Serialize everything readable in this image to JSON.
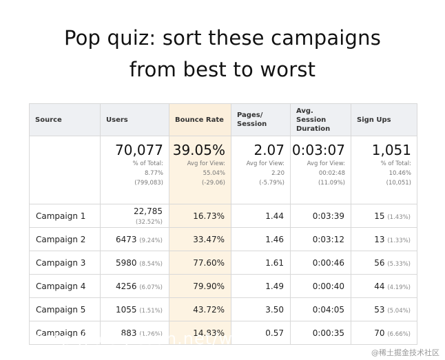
{
  "title": {
    "line1": "Pop quiz: sort these campaigns",
    "line2": "from best to worst"
  },
  "table": {
    "headers": [
      "Source",
      "Users",
      "Bounce Rate",
      "Pages/ Session",
      "Avg. Session Duration",
      "Sign Ups"
    ],
    "summary": {
      "users": {
        "value": "70,077",
        "l1": "% of Total:",
        "l2": "8.77%",
        "l3": "(799,083)"
      },
      "bounce": {
        "value": "39.05%",
        "l1": "Avg for View:",
        "l2": "55.04%",
        "l3": "(-29.06)"
      },
      "pages": {
        "value": "2.07",
        "l1": "Avg for View:",
        "l2": "2.20",
        "l3": "(-5.79%)"
      },
      "duration": {
        "value": "0:03:07",
        "l1": "Avg for View:",
        "l2": "00:02:48",
        "l3": "(11.09%)"
      },
      "signups": {
        "value": "1,051",
        "l1": "% of Total:",
        "l2": "10.46%",
        "l3": "(10,051)"
      }
    },
    "rows": [
      {
        "name": "Campaign 1",
        "users": "22,785",
        "users_pct": "(32.52%)",
        "bounce": "16.73%",
        "pages": "1.44",
        "duration": "0:03:39",
        "signups": "15",
        "signups_pct": "(1.43%)"
      },
      {
        "name": "Campaign 2",
        "users": "6473",
        "users_pct": "(9.24%)",
        "bounce": "33.47%",
        "pages": "1.46",
        "duration": "0:03:12",
        "signups": "13",
        "signups_pct": "(1.33%)"
      },
      {
        "name": "Campaign 3",
        "users": "5980",
        "users_pct": "(8.54%)",
        "bounce": "77.60%",
        "pages": "1.61",
        "duration": "0:00:46",
        "signups": "56",
        "signups_pct": "(5.33%)"
      },
      {
        "name": "Campaign 4",
        "users": "4256",
        "users_pct": "(6.07%)",
        "bounce": "79.90%",
        "pages": "1.49",
        "duration": "0:00:40",
        "signups": "44",
        "signups_pct": "(4.19%)"
      },
      {
        "name": "Campaign 5",
        "users": "1055",
        "users_pct": "(1.51%)",
        "bounce": "43.72%",
        "pages": "3.50",
        "duration": "0:04:05",
        "signups": "53",
        "signups_pct": "(5.04%)"
      },
      {
        "name": "Campaign 6",
        "users": "883",
        "users_pct": "(1.26%)",
        "bounce": "14.83%",
        "pages": "0.57",
        "duration": "0:00:35",
        "signups": "70",
        "signups_pct": "(6.66%)"
      }
    ]
  },
  "watermark": {
    "url": "http://blog.csdn.net/w_x_x_x",
    "site": "@稀土掘金技术社区"
  },
  "colors": {
    "header_bg": "#eef0f3",
    "bounce_highlight": "#fdf3e2",
    "border": "#d8d8d8"
  }
}
